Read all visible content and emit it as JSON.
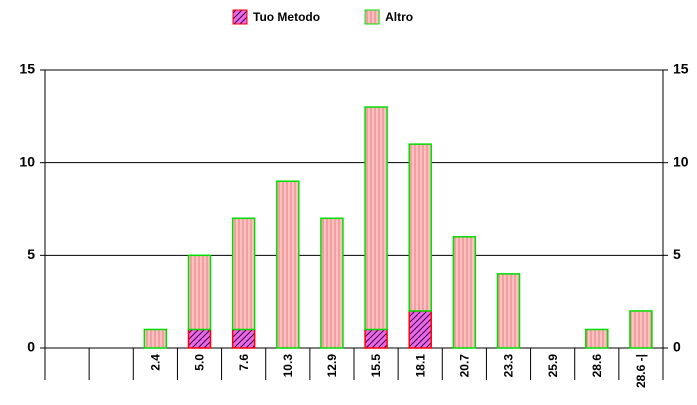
{
  "chart_data": {
    "type": "bar",
    "stacked": true,
    "categories": [
      null,
      null,
      "2.4",
      "5.0",
      "7.6",
      "10.3",
      "12.9",
      "15.5",
      "18.1",
      "20.7",
      "23.3",
      "25.9",
      "28.6",
      "28.6 -|"
    ],
    "series": [
      {
        "name": "Tuo Metodo",
        "color": "#ee66ee",
        "edgecolor": "#ff0000",
        "hatch": "diagonal",
        "values": [
          null,
          null,
          0,
          1,
          1,
          0,
          0,
          1,
          2,
          0,
          0,
          0,
          0,
          0
        ]
      },
      {
        "name": "Altro",
        "color": "#ffc0c0",
        "edgecolor": "#00dd00",
        "hatch": "vertical",
        "values": [
          null,
          null,
          1,
          4,
          6,
          9,
          7,
          12,
          9,
          6,
          4,
          0,
          1,
          2
        ]
      }
    ],
    "ylim": [
      0,
      15
    ],
    "yticks": [
      0,
      5,
      10,
      15
    ],
    "y2lim": [
      0,
      15
    ],
    "y2ticks": [
      0,
      5,
      10,
      15
    ],
    "grid": true,
    "legend": "top"
  }
}
